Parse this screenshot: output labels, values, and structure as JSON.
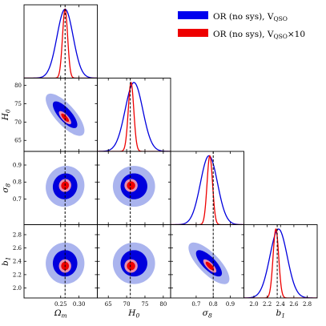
{
  "chart_data": {
    "type": "corner",
    "params": [
      {
        "key": "om",
        "label": "Ωm",
        "label_base": "Ω",
        "label_sub": "m",
        "range": [
          0.15,
          0.35
        ],
        "ticks": [
          0.25,
          0.3
        ],
        "tick_labels": [
          "0.25",
          "0.30"
        ],
        "truth": 0.262
      },
      {
        "key": "h0",
        "label": "H0",
        "label_base": "H",
        "label_sub": "0",
        "range": [
          62,
          82
        ],
        "ticks": [
          65,
          70,
          75,
          80
        ],
        "tick_labels": [
          "65",
          "70",
          "75",
          "80"
        ],
        "truth": 71.0
      },
      {
        "key": "s8",
        "label": "σ8",
        "label_base": "σ",
        "label_sub": "8",
        "range": [
          0.55,
          0.98
        ],
        "ticks": [
          0.7,
          0.8,
          0.9
        ],
        "tick_labels": [
          "0.7",
          "0.8",
          "0.9"
        ],
        "truth": 0.8
      },
      {
        "key": "b1",
        "label": "b1",
        "label_base": "b",
        "label_sub": "1",
        "range": [
          1.85,
          2.95
        ],
        "ticks": [
          2.0,
          2.2,
          2.4,
          2.6,
          2.8
        ],
        "tick_labels": [
          "2.0",
          "2.2",
          "2.4",
          "2.6",
          "2.8"
        ],
        "truth": 2.35
      }
    ],
    "series": [
      {
        "name": "OR (no sys), V_QSO",
        "color": "#0000dd",
        "light_color": "#aab4ee",
        "mean": [
          0.262,
          72.0,
          0.775,
          2.37
        ],
        "sigma": [
          0.022,
          2.4,
          0.05,
          0.13
        ],
        "corr": [
          [
            0,
            1,
            -0.75
          ],
          [
            0,
            2,
            0.05
          ],
          [
            0,
            3,
            0.0
          ],
          [
            1,
            2,
            0.0
          ],
          [
            1,
            3,
            0.0
          ],
          [
            2,
            3,
            -0.75
          ]
        ]
      },
      {
        "name": "OR (no sys), V_QSO×10",
        "color": "#ee0000",
        "light_color": "#e78fb0",
        "mean": [
          0.262,
          71.2,
          0.78,
          2.33
        ],
        "sigma": [
          0.007,
          0.75,
          0.016,
          0.042
        ],
        "corr": [
          [
            0,
            1,
            -0.75
          ],
          [
            0,
            2,
            0.05
          ],
          [
            0,
            3,
            0.0
          ],
          [
            1,
            2,
            0.0
          ],
          [
            1,
            3,
            0.0
          ],
          [
            2,
            3,
            -0.75
          ]
        ]
      }
    ],
    "legend": {
      "placement": "top-right",
      "entries": [
        {
          "text": "OR (no sys), V",
          "sub": "QSO",
          "suffix": ""
        },
        {
          "text": "OR (no sys), V",
          "sub": "QSO",
          "suffix": "×10"
        }
      ]
    },
    "grid": false,
    "truth_line_style": "dashed"
  }
}
